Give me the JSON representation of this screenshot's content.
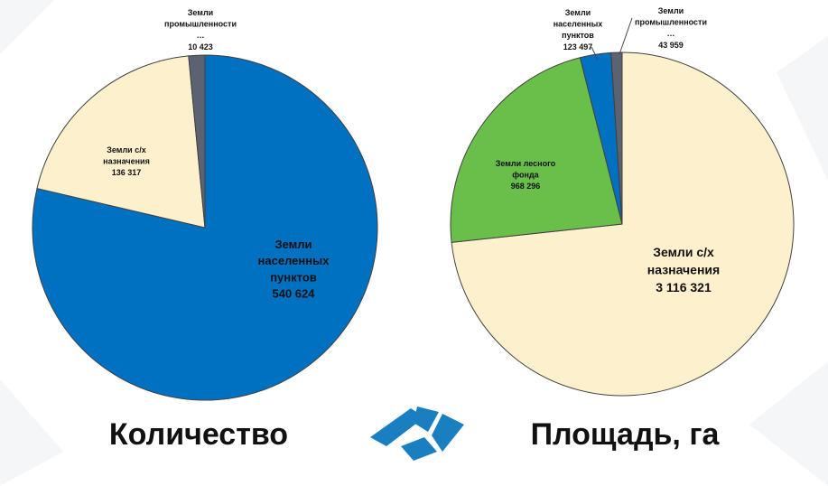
{
  "chart_data": [
    {
      "type": "pie",
      "title": "Количество",
      "categories": [
        "Земли населенных пунктов",
        "Земли с/х назначения",
        "Земли промышленности …"
      ],
      "values": [
        540624,
        136317,
        10423
      ],
      "value_labels": [
        "540 624",
        "136 317",
        "10 423"
      ],
      "colors": [
        "#0070c0",
        "#fdf0cc",
        "#5b6271"
      ]
    },
    {
      "type": "pie",
      "title": "Площадь, га",
      "categories": [
        "Земли с/х назначения",
        "Земли лесного фонда",
        "Земли населенных пунктов",
        "Земли промышленности …"
      ],
      "values": [
        3116321,
        968296,
        123497,
        43959
      ],
      "value_labels": [
        "3 116 321",
        "968 296",
        "123 497",
        "43 959"
      ],
      "colors": [
        "#fdf0cc",
        "#6abf4b",
        "#0070c0",
        "#5b6271"
      ]
    }
  ]
}
